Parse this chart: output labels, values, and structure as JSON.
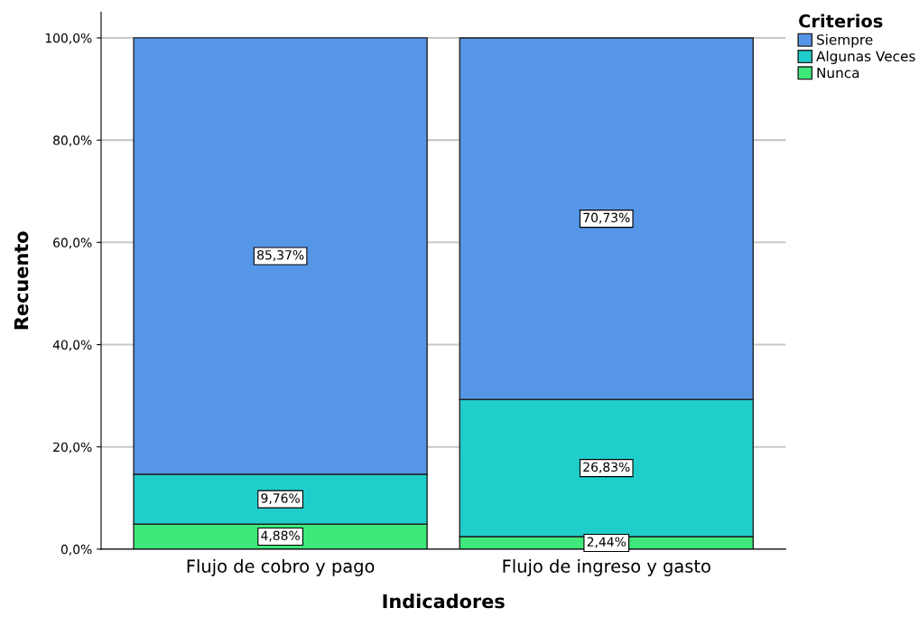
{
  "chart_data": {
    "type": "bar",
    "stacked": true,
    "xlabel": "Indicadores",
    "ylabel": "Recuento",
    "legend_title": "Criterios",
    "legend": "top right",
    "categories": [
      "Flujo de cobro y pago",
      "Flujo de ingreso y gasto"
    ],
    "series": [
      {
        "name": "Nunca",
        "color": "#3ee87a",
        "values": [
          4.88,
          2.44
        ],
        "value_labels": [
          "4,88%",
          "2,44%"
        ]
      },
      {
        "name": "Algunas Veces",
        "color": "#1fcecb",
        "values": [
          9.76,
          26.83
        ],
        "value_labels": [
          "9,76%",
          "26,83%"
        ]
      },
      {
        "name": "Siempre",
        "color": "#5596e6",
        "values": [
          85.37,
          70.73
        ],
        "value_labels": [
          "85,37%",
          "70,73%"
        ]
      }
    ],
    "ylim": [
      0,
      105
    ],
    "yticks": [
      {
        "value": 0,
        "label": "0,0%"
      },
      {
        "value": 20,
        "label": "20,0%"
      },
      {
        "value": 40,
        "label": "40,0%"
      },
      {
        "value": 60,
        "label": "60,0%"
      },
      {
        "value": 80,
        "label": "80,0%"
      },
      {
        "value": 100,
        "label": "100,0%"
      }
    ],
    "grid": "y"
  }
}
